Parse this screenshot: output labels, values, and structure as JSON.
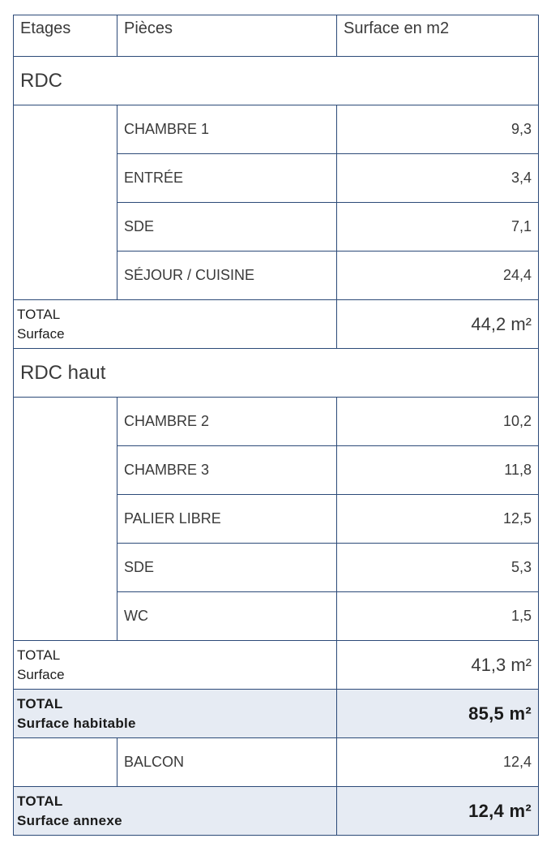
{
  "header": {
    "col_floor": "Etages",
    "col_room": "Pièces",
    "col_area": "Surface en m2"
  },
  "floors": [
    {
      "name": "RDC",
      "rooms": [
        {
          "name": "CHAMBRE 1",
          "area": "9,3"
        },
        {
          "name": "ENTRÉE",
          "area": "3,4"
        },
        {
          "name": "SDE",
          "area": "7,1"
        },
        {
          "name": "SÉJOUR / CUISINE",
          "area": "24,4"
        }
      ],
      "total_label_1": "TOTAL",
      "total_label_2": "Surface",
      "total_value": "44,2 m²"
    },
    {
      "name": "RDC haut",
      "rooms": [
        {
          "name": "CHAMBRE 2",
          "area": "10,2"
        },
        {
          "name": "CHAMBRE 3",
          "area": "11,8"
        },
        {
          "name": "PALIER LIBRE",
          "area": "12,5"
        },
        {
          "name": "SDE",
          "area": "5,3"
        },
        {
          "name": "WC",
          "area": "1,5"
        }
      ],
      "total_label_1": "TOTAL",
      "total_label_2": "Surface",
      "total_value": "41,3 m²"
    }
  ],
  "habitable": {
    "label_1": "TOTAL",
    "label_2": "Surface habitable",
    "value": "85,5 m²"
  },
  "annex_rooms": [
    {
      "name": "BALCON",
      "area": "12,4"
    }
  ],
  "annex": {
    "label_1": "TOTAL",
    "label_2": "Surface annexe",
    "value": "12,4 m²"
  },
  "colors": {
    "border": "#2c4a78",
    "total_highlight": "#e6ebf3"
  }
}
